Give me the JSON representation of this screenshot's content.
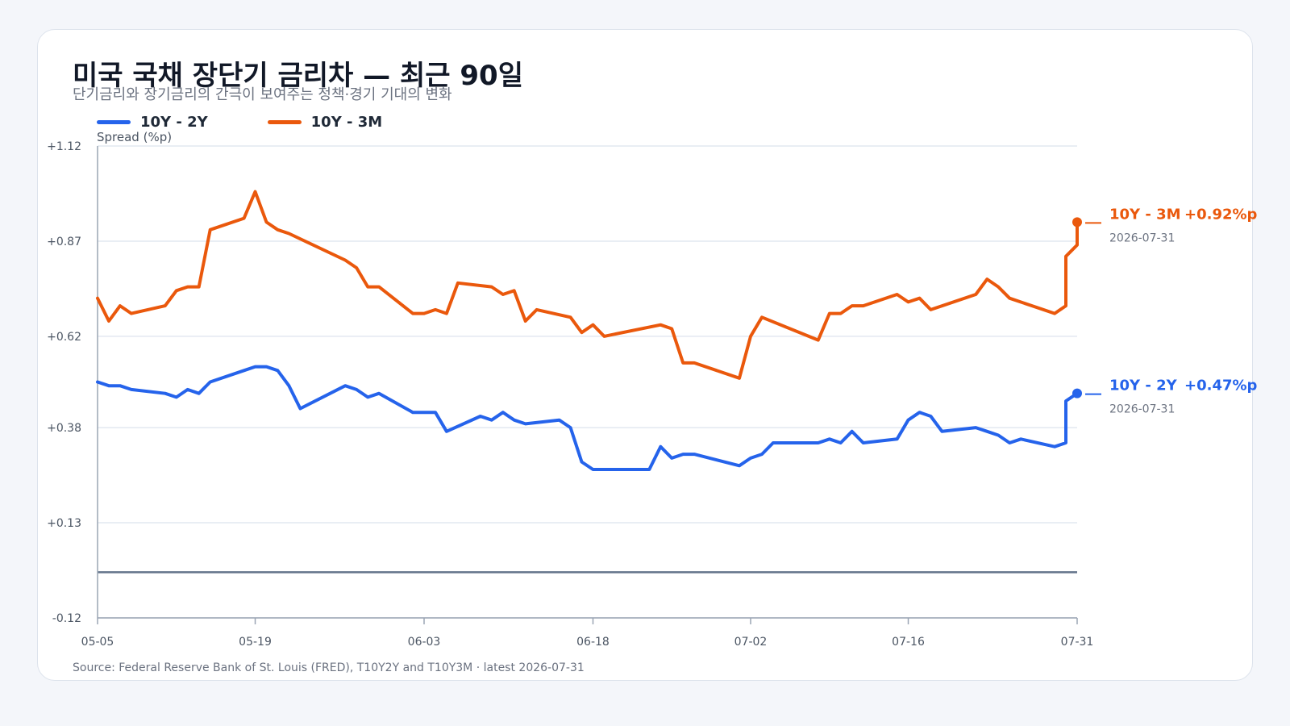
{
  "title": "미국 국채 장단기 금리차 — 최근 90일",
  "subtitle": "단기금리와 장기금리의 간극이 보여주는 정책·경기 기대의 변화",
  "source": "Source: Federal Reserve Bank of St. Louis (FRED), T10Y2Y and T10Y3M · latest 2026-07-31",
  "legend": [
    {
      "label": "10Y - 2Y",
      "color": "#2563eb"
    },
    {
      "label": "10Y - 3M",
      "color": "#ea580c"
    }
  ],
  "end_labels": [
    {
      "name": "10Y - 2Y",
      "value": "+0.47%p",
      "date": "2026-07-31",
      "color": "#2563eb"
    },
    {
      "name": "10Y - 3M",
      "value": "+0.92%p",
      "date": "2026-07-31",
      "color": "#ea580c"
    }
  ],
  "chart_data": {
    "type": "line",
    "ylabel": "Spread (%p)",
    "ylim": [
      -0.12,
      1.12
    ],
    "yticks": [
      {
        "value": 1.12,
        "label": "+1.12"
      },
      {
        "value": 0.87,
        "label": "+0.87"
      },
      {
        "value": 0.62,
        "label": "+0.62"
      },
      {
        "value": 0.38,
        "label": "+0.38"
      },
      {
        "value": 0.13,
        "label": "+0.13"
      },
      {
        "value": -0.12,
        "label": "-0.12"
      }
    ],
    "xticks": [
      "05-05",
      "05-19",
      "06-03",
      "06-18",
      "07-02",
      "07-16",
      "07-31"
    ],
    "x_start": "2026-05-05",
    "x_end": "2026-07-31",
    "grid": true,
    "zero_line": true,
    "series": [
      {
        "name": "10Y - 2Y",
        "color": "#2563eb",
        "points": [
          [
            "2026-05-05",
            0.5
          ],
          [
            "2026-05-06",
            0.49
          ],
          [
            "2026-05-07",
            0.49
          ],
          [
            "2026-05-08",
            0.48
          ],
          [
            "2026-05-11",
            0.47
          ],
          [
            "2026-05-12",
            0.46
          ],
          [
            "2026-05-13",
            0.48
          ],
          [
            "2026-05-14",
            0.47
          ],
          [
            "2026-05-15",
            0.5
          ],
          [
            "2026-05-18",
            0.53
          ],
          [
            "2026-05-19",
            0.54
          ],
          [
            "2026-05-20",
            0.54
          ],
          [
            "2026-05-21",
            0.53
          ],
          [
            "2026-05-22",
            0.49
          ],
          [
            "2026-05-23",
            0.43
          ],
          [
            "2026-05-27",
            0.49
          ],
          [
            "2026-05-28",
            0.48
          ],
          [
            "2026-05-29",
            0.46
          ],
          [
            "2026-05-30",
            0.47
          ],
          [
            "2026-06-02",
            0.42
          ],
          [
            "2026-06-03",
            0.42
          ],
          [
            "2026-06-04",
            0.42
          ],
          [
            "2026-06-05",
            0.37
          ],
          [
            "2026-06-08",
            0.41
          ],
          [
            "2026-06-09",
            0.4
          ],
          [
            "2026-06-10",
            0.42
          ],
          [
            "2026-06-11",
            0.4
          ],
          [
            "2026-06-12",
            0.39
          ],
          [
            "2026-06-15",
            0.4
          ],
          [
            "2026-06-16",
            0.38
          ],
          [
            "2026-06-17",
            0.29
          ],
          [
            "2026-06-18",
            0.27
          ],
          [
            "2026-06-23",
            0.27
          ],
          [
            "2026-06-24",
            0.33
          ],
          [
            "2026-06-25",
            0.3
          ],
          [
            "2026-06-26",
            0.31
          ],
          [
            "2026-06-27",
            0.31
          ],
          [
            "2026-07-01",
            0.28
          ],
          [
            "2026-07-02",
            0.3
          ],
          [
            "2026-07-03",
            0.31
          ],
          [
            "2026-07-04",
            0.34
          ],
          [
            "2026-07-08",
            0.34
          ],
          [
            "2026-07-09",
            0.35
          ],
          [
            "2026-07-10",
            0.34
          ],
          [
            "2026-07-11",
            0.37
          ],
          [
            "2026-07-12",
            0.34
          ],
          [
            "2026-07-15",
            0.35
          ],
          [
            "2026-07-16",
            0.4
          ],
          [
            "2026-07-17",
            0.42
          ],
          [
            "2026-07-18",
            0.41
          ],
          [
            "2026-07-19",
            0.37
          ],
          [
            "2026-07-22",
            0.38
          ],
          [
            "2026-07-23",
            0.37
          ],
          [
            "2026-07-24",
            0.36
          ],
          [
            "2026-07-25",
            0.34
          ],
          [
            "2026-07-26",
            0.35
          ],
          [
            "2026-07-29",
            0.33
          ],
          [
            "2026-07-30",
            0.34
          ],
          [
            "2026-07-30",
            0.45
          ],
          [
            "2026-07-31",
            0.47
          ]
        ]
      },
      {
        "name": "10Y - 3M",
        "color": "#ea580c",
        "points": [
          [
            "2026-05-05",
            0.72
          ],
          [
            "2026-05-06",
            0.66
          ],
          [
            "2026-05-07",
            0.7
          ],
          [
            "2026-05-08",
            0.68
          ],
          [
            "2026-05-11",
            0.7
          ],
          [
            "2026-05-12",
            0.74
          ],
          [
            "2026-05-13",
            0.75
          ],
          [
            "2026-05-14",
            0.75
          ],
          [
            "2026-05-15",
            0.9
          ],
          [
            "2026-05-18",
            0.93
          ],
          [
            "2026-05-19",
            1.0
          ],
          [
            "2026-05-20",
            0.92
          ],
          [
            "2026-05-21",
            0.9
          ],
          [
            "2026-05-22",
            0.89
          ],
          [
            "2026-05-27",
            0.82
          ],
          [
            "2026-05-28",
            0.8
          ],
          [
            "2026-05-29",
            0.75
          ],
          [
            "2026-05-30",
            0.75
          ],
          [
            "2026-06-02",
            0.68
          ],
          [
            "2026-06-03",
            0.68
          ],
          [
            "2026-06-04",
            0.69
          ],
          [
            "2026-06-05",
            0.68
          ],
          [
            "2026-06-06",
            0.76
          ],
          [
            "2026-06-09",
            0.75
          ],
          [
            "2026-06-10",
            0.73
          ],
          [
            "2026-06-11",
            0.74
          ],
          [
            "2026-06-12",
            0.66
          ],
          [
            "2026-06-13",
            0.69
          ],
          [
            "2026-06-16",
            0.67
          ],
          [
            "2026-06-17",
            0.63
          ],
          [
            "2026-06-18",
            0.65
          ],
          [
            "2026-06-19",
            0.62
          ],
          [
            "2026-06-24",
            0.65
          ],
          [
            "2026-06-25",
            0.64
          ],
          [
            "2026-06-26",
            0.55
          ],
          [
            "2026-06-27",
            0.55
          ],
          [
            "2026-07-01",
            0.51
          ],
          [
            "2026-07-02",
            0.62
          ],
          [
            "2026-07-03",
            0.67
          ],
          [
            "2026-07-08",
            0.61
          ],
          [
            "2026-07-09",
            0.68
          ],
          [
            "2026-07-10",
            0.68
          ],
          [
            "2026-07-11",
            0.7
          ],
          [
            "2026-07-12",
            0.7
          ],
          [
            "2026-07-15",
            0.73
          ],
          [
            "2026-07-16",
            0.71
          ],
          [
            "2026-07-17",
            0.72
          ],
          [
            "2026-07-18",
            0.69
          ],
          [
            "2026-07-22",
            0.73
          ],
          [
            "2026-07-23",
            0.77
          ],
          [
            "2026-07-24",
            0.75
          ],
          [
            "2026-07-25",
            0.72
          ],
          [
            "2026-07-29",
            0.68
          ],
          [
            "2026-07-30",
            0.7
          ],
          [
            "2026-07-30",
            0.83
          ],
          [
            "2026-07-31",
            0.86
          ],
          [
            "2026-07-31",
            0.92
          ]
        ]
      }
    ]
  }
}
